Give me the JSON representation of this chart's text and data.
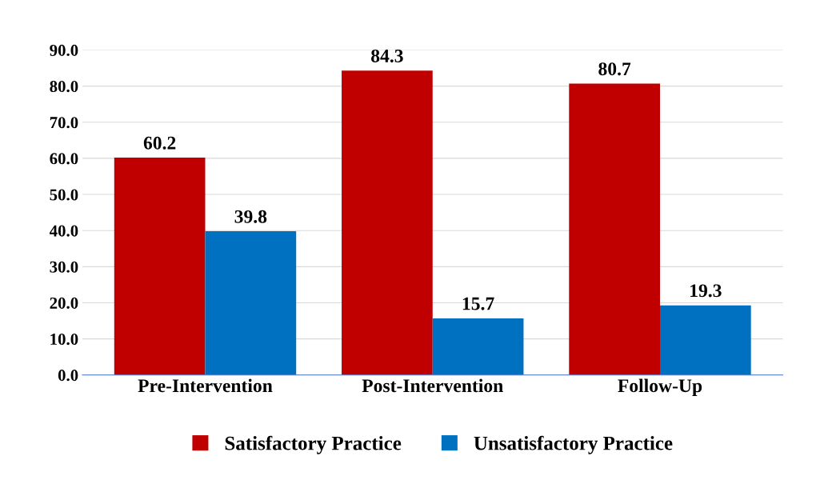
{
  "chart_data": {
    "type": "bar",
    "categories": [
      "Pre-Intervention",
      "Post-Intervention",
      "Follow-Up"
    ],
    "series": [
      {
        "name": "Satisfactory Practice",
        "color": "#c00000",
        "values": [
          60.2,
          84.3,
          80.7
        ]
      },
      {
        "name": "Unsatisfactory Practice",
        "color": "#0070c0",
        "values": [
          39.8,
          15.7,
          19.3
        ]
      }
    ],
    "ylim": [
      0,
      90
    ],
    "yticks": [
      {
        "value": 0,
        "label": "0.0"
      },
      {
        "value": 10,
        "label": "10.0"
      },
      {
        "value": 20,
        "label": "20.0"
      },
      {
        "value": 30,
        "label": "30.0"
      },
      {
        "value": 40,
        "label": "40.0"
      },
      {
        "value": 50,
        "label": "50.0"
      },
      {
        "value": 60,
        "label": "60.0"
      },
      {
        "value": 70,
        "label": "70.0"
      },
      {
        "value": 80,
        "label": "80.0"
      },
      {
        "value": 90,
        "label": "90.0"
      }
    ],
    "grid": "y",
    "legend": "bottom",
    "data_labels": true
  }
}
